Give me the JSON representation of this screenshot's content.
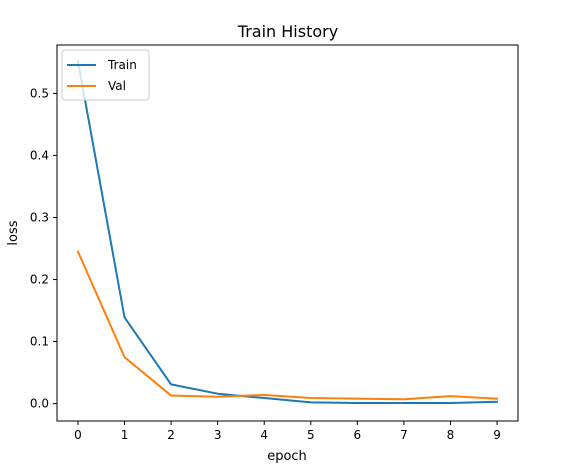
{
  "chart_data": {
    "type": "line",
    "title": "Train History",
    "xlabel": "epoch",
    "ylabel": "loss",
    "xlim": [
      -0.45,
      9.45
    ],
    "ylim": [
      -0.028,
      0.578
    ],
    "x": [
      0,
      1,
      2,
      3,
      4,
      5,
      6,
      7,
      8,
      9
    ],
    "xticks": [
      "0",
      "1",
      "2",
      "3",
      "4",
      "5",
      "6",
      "7",
      "8",
      "9"
    ],
    "yticks": [
      0.0,
      0.1,
      0.2,
      0.3,
      0.4,
      0.5
    ],
    "ytick_labels": [
      "0.0",
      "0.1",
      "0.2",
      "0.3",
      "0.4",
      "0.5"
    ],
    "grid": false,
    "legend_position": "top-left",
    "series": [
      {
        "name": "Train",
        "color": "#1f77b4",
        "values": [
          0.552,
          0.139,
          0.031,
          0.016,
          0.009,
          0.002,
          0.001,
          0.001,
          0.001,
          0.003
        ]
      },
      {
        "name": "Val",
        "color": "#ff7f0e",
        "values": [
          0.245,
          0.075,
          0.013,
          0.011,
          0.014,
          0.009,
          0.008,
          0.007,
          0.012,
          0.008
        ]
      }
    ]
  }
}
